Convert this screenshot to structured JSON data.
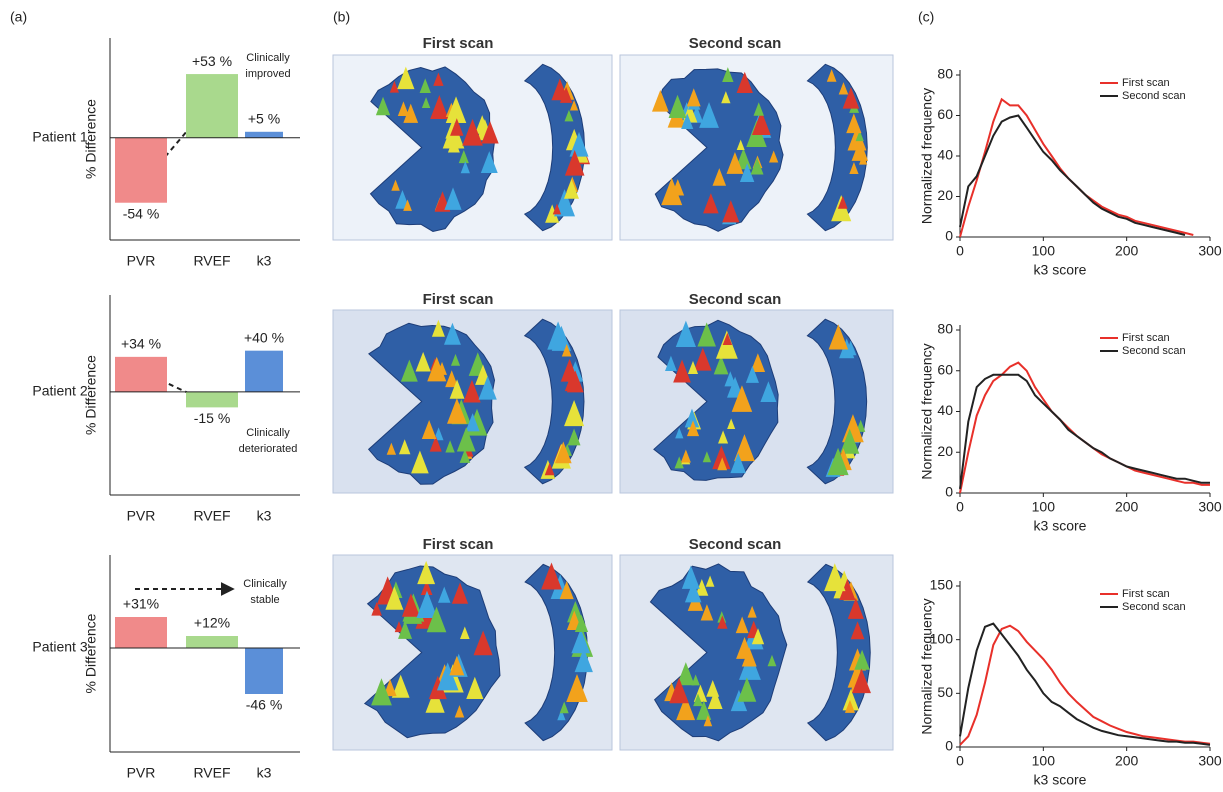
{
  "panel_labels": [
    "(a)",
    "(b)",
    "(c)"
  ],
  "scan_titles": [
    [
      "First scan",
      "Second scan"
    ],
    [
      "First scan",
      "Second scan"
    ],
    [
      "First scan",
      "Second scan"
    ]
  ],
  "chart_data": [
    {
      "type": "bar",
      "patient": "Patient 1",
      "ylabel": "% Difference",
      "categories": [
        "PVR",
        "RVEF",
        "k3"
      ],
      "values": [
        -54,
        53,
        5
      ],
      "value_labels": [
        "-54 %",
        "+53 %",
        "+5 %"
      ],
      "colors": [
        "#f08a8a",
        "#a9d98d",
        "#5b8fd8"
      ],
      "ylim": [
        -85,
        83
      ],
      "annotation": [
        "Clinically",
        "improved"
      ]
    },
    {
      "type": "bar",
      "patient": "Patient 2",
      "ylabel": "% Difference",
      "categories": [
        "PVR",
        "RVEF",
        "k3"
      ],
      "values": [
        34,
        -15,
        40
      ],
      "value_labels": [
        "+34 %",
        "-15 %",
        "+40 %"
      ],
      "colors": [
        "#f08a8a",
        "#a9d98d",
        "#5b8fd8"
      ],
      "ylim": [
        -100,
        94
      ],
      "annotation": [
        "Clinically",
        "deteriorated"
      ]
    },
    {
      "type": "bar",
      "patient": "Patient 3",
      "ylabel": "% Difference",
      "categories": [
        "PVR",
        "RVEF",
        "k3"
      ],
      "values": [
        31,
        12,
        -46
      ],
      "value_labels": [
        "+31%",
        "+12%",
        "-46 %"
      ],
      "colors": [
        "#f08a8a",
        "#a9d98d",
        "#5b8fd8"
      ],
      "ylim": [
        -104,
        93
      ],
      "annotation": [
        "Clinically",
        "stable"
      ]
    },
    {
      "type": "line",
      "xlabel": "k3 score",
      "ylabel": "Normalized frequency",
      "legend": "upper right",
      "xlim": [
        0,
        300
      ],
      "ylim": [
        0,
        80
      ],
      "xticks": [
        0,
        100,
        200,
        300
      ],
      "yticks": [
        0,
        20,
        40,
        60,
        80
      ],
      "x": [
        0,
        10,
        20,
        30,
        40,
        50,
        60,
        70,
        80,
        90,
        100,
        110,
        120,
        130,
        140,
        150,
        160,
        170,
        180,
        190,
        200,
        210,
        220,
        230,
        240,
        250,
        260,
        270,
        280,
        290,
        300
      ],
      "series": [
        {
          "name": "First scan",
          "color": "#e8302a",
          "values": [
            0,
            15,
            28,
            42,
            57,
            68,
            65,
            65,
            60,
            53,
            46,
            40,
            34,
            29,
            25,
            21,
            18,
            15,
            13,
            11,
            10,
            8,
            7,
            6,
            5,
            4,
            3,
            2,
            1,
            null,
            null
          ]
        },
        {
          "name": "Second scan",
          "color": "#222222",
          "values": [
            5,
            25,
            30,
            40,
            50,
            57,
            59,
            60,
            54,
            48,
            42,
            38,
            33,
            29,
            25,
            21,
            17,
            14,
            12,
            10,
            9,
            7,
            6,
            5,
            4,
            3,
            2,
            1,
            null,
            null,
            null
          ]
        }
      ]
    },
    {
      "type": "line",
      "xlabel": "k3 score",
      "ylabel": "Normalized frequency",
      "legend": "upper right",
      "xlim": [
        0,
        300
      ],
      "ylim": [
        0,
        80
      ],
      "xticks": [
        0,
        100,
        200,
        300
      ],
      "yticks": [
        0,
        20,
        40,
        60,
        80
      ],
      "x": [
        0,
        10,
        20,
        30,
        40,
        50,
        60,
        70,
        80,
        90,
        100,
        110,
        120,
        130,
        140,
        150,
        160,
        170,
        180,
        190,
        200,
        210,
        220,
        230,
        240,
        250,
        260,
        270,
        280,
        290,
        300
      ],
      "series": [
        {
          "name": "First scan",
          "color": "#e8302a",
          "values": [
            0,
            20,
            38,
            48,
            55,
            58,
            62,
            64,
            60,
            52,
            46,
            40,
            36,
            32,
            28,
            25,
            22,
            19,
            17,
            15,
            13,
            11,
            10,
            9,
            8,
            7,
            6,
            5,
            5,
            4,
            4
          ]
        },
        {
          "name": "Second scan",
          "color": "#222222",
          "values": [
            2,
            35,
            52,
            56,
            58,
            58,
            58,
            58,
            55,
            48,
            44,
            40,
            36,
            31,
            28,
            25,
            22,
            20,
            17,
            15,
            13,
            12,
            11,
            10,
            9,
            8,
            7,
            7,
            6,
            5,
            5
          ]
        }
      ]
    },
    {
      "type": "line",
      "xlabel": "k3 score",
      "ylabel": "Normalized frequency",
      "legend": "upper right",
      "xlim": [
        0,
        300
      ],
      "ylim": [
        0,
        150
      ],
      "xticks": [
        0,
        100,
        200,
        300
      ],
      "yticks": [
        0,
        50,
        100,
        150
      ],
      "x": [
        0,
        10,
        20,
        30,
        40,
        50,
        60,
        70,
        80,
        90,
        100,
        110,
        120,
        130,
        140,
        150,
        160,
        170,
        180,
        190,
        200,
        210,
        220,
        230,
        240,
        250,
        260,
        270,
        280,
        290,
        300
      ],
      "series": [
        {
          "name": "First scan",
          "color": "#e8302a",
          "values": [
            2,
            10,
            30,
            60,
            95,
            110,
            113,
            108,
            98,
            90,
            82,
            72,
            60,
            50,
            42,
            35,
            28,
            24,
            20,
            17,
            14,
            12,
            10,
            9,
            8,
            7,
            6,
            5,
            5,
            4,
            3
          ]
        },
        {
          "name": "Second scan",
          "color": "#222222",
          "values": [
            10,
            55,
            90,
            112,
            115,
            105,
            95,
            85,
            72,
            62,
            50,
            42,
            38,
            32,
            26,
            22,
            18,
            15,
            13,
            11,
            10,
            9,
            8,
            7,
            6,
            5,
            5,
            4,
            4,
            3,
            2
          ]
        }
      ]
    }
  ]
}
